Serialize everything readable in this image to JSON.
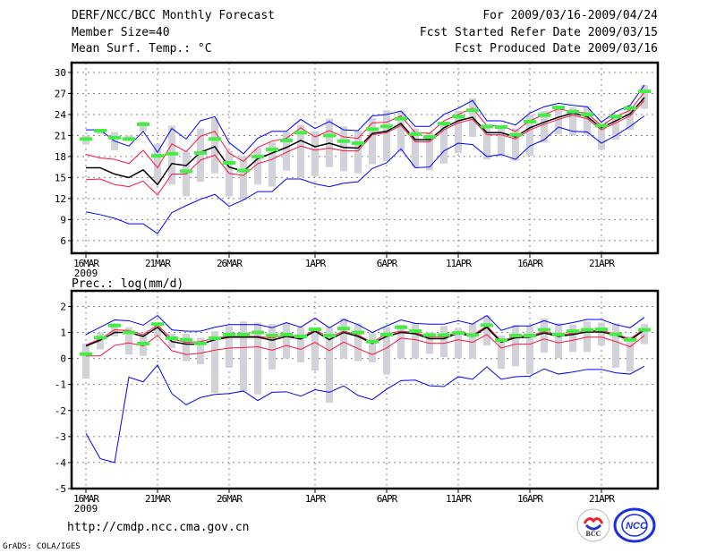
{
  "header": {
    "title": "DERF/NCC/BCC Monthly Forecast",
    "member_size": "Member Size=40",
    "variable": "Mean Surf. Temp.: °C",
    "period": "For 2009/03/16-2009/04/24",
    "start_date": "Fcst Started Refer Date 2009/03/15",
    "produced_date": "Fcst Produced Date 2009/03/16"
  },
  "footer": {
    "url": "http://cmdp.ncc.cma.gov.cn",
    "credit": "GrADS: COLA/IGES",
    "logo_left": "BCC",
    "logo_right": "NCC"
  },
  "colors": {
    "ens_bound": "#0000ff",
    "spread": "#ff1040",
    "mean": "#000000",
    "obs": "#44ee44",
    "range_bar": "#d2d3d8",
    "grid": "#888888"
  },
  "chart_data": [
    {
      "type": "line",
      "title": "Mean Surf. Temp.: °C",
      "ylabel": "°C",
      "ylim": [
        4.2,
        31.4
      ],
      "yticks": [
        6,
        9,
        12,
        15,
        18,
        21,
        24,
        27,
        30
      ],
      "xtick_labels": [
        "16MAR",
        "21MAR",
        "26MAR",
        "1APR",
        "6APR",
        "11APR",
        "16APR",
        "21APR"
      ],
      "xtick_days": [
        0,
        5,
        10,
        16,
        21,
        26,
        31,
        36
      ],
      "year_label": "2009",
      "grid": true,
      "x_days": 40,
      "series": [
        {
          "name": "max",
          "color": "#0000ff",
          "values": [
            21.8,
            21.8,
            20.2,
            19.5,
            21.6,
            18.6,
            22.0,
            20.5,
            23.1,
            23.7,
            20.0,
            18.4,
            20.6,
            21.6,
            21.6,
            23.3,
            22.0,
            23.0,
            21.8,
            21.7,
            23.8,
            24.0,
            24.5,
            22.3,
            22.3,
            24.0,
            24.9,
            26.0,
            23.1,
            23.1,
            22.5,
            24.2,
            25.1,
            25.6,
            25.3,
            25.1,
            22.9,
            24.4,
            25.3,
            28.2
          ]
        },
        {
          "name": "mean+sd",
          "color": "#ff1040",
          "values": [
            18.3,
            17.8,
            17.6,
            17.0,
            18.9,
            16.4,
            19.8,
            18.7,
            20.9,
            21.6,
            18.5,
            17.3,
            19.3,
            20.2,
            20.6,
            22.1,
            20.8,
            21.7,
            20.8,
            20.6,
            22.8,
            22.9,
            23.8,
            21.4,
            21.3,
            23.1,
            24.0,
            24.9,
            22.4,
            22.4,
            21.6,
            23.1,
            24.0,
            24.8,
            24.4,
            24.2,
            22.4,
            23.7,
            24.6,
            27.2
          ]
        },
        {
          "name": "mean",
          "color": "#000000",
          "values": [
            16.4,
            16.4,
            15.5,
            15.0,
            16.1,
            14.0,
            17.0,
            16.7,
            18.6,
            19.4,
            16.5,
            15.9,
            17.7,
            18.5,
            19.3,
            20.3,
            19.4,
            19.9,
            19.3,
            19.2,
            21.3,
            21.6,
            22.7,
            20.4,
            20.4,
            22.1,
            23.1,
            23.6,
            21.4,
            21.4,
            20.8,
            22.1,
            22.9,
            23.6,
            24.2,
            23.7,
            22.1,
            23.1,
            24.1,
            26.4
          ]
        },
        {
          "name": "mean-sd",
          "color": "#ff1040",
          "values": [
            14.7,
            14.8,
            14.0,
            13.7,
            14.5,
            12.5,
            15.5,
            15.5,
            17.5,
            18.2,
            15.6,
            15.3,
            17.0,
            17.6,
            18.6,
            19.5,
            18.9,
            19.2,
            18.8,
            18.8,
            21.1,
            21.4,
            22.4,
            20.1,
            20.1,
            21.8,
            22.8,
            23.3,
            21.1,
            21.1,
            20.5,
            21.8,
            22.6,
            23.3,
            23.9,
            23.4,
            21.8,
            22.8,
            23.8,
            26.0
          ]
        },
        {
          "name": "min",
          "color": "#0000ff",
          "values": [
            10.1,
            9.7,
            9.2,
            8.4,
            8.4,
            7.0,
            10.0,
            11.0,
            11.9,
            12.6,
            10.9,
            11.8,
            13.0,
            13.0,
            14.8,
            14.8,
            14.1,
            13.7,
            14.2,
            14.4,
            16.3,
            17.1,
            19.1,
            16.4,
            16.5,
            18.8,
            19.9,
            19.7,
            18.0,
            18.3,
            17.6,
            19.5,
            20.4,
            22.2,
            21.6,
            21.5,
            19.9,
            21.0,
            22.3,
            23.8
          ]
        }
      ],
      "observed": [
        20.5,
        21.7,
        20.7,
        20.5,
        22.6,
        18.1,
        18.4,
        15.9,
        18.5,
        20.5,
        17.1,
        16.0,
        18.0,
        19.0,
        20.3,
        21.4,
        null,
        21.0,
        20.2,
        19.9,
        21.9,
        22.3,
        23.4,
        21.2,
        20.8,
        22.7,
        23.7,
        24.6,
        22.3,
        22.2,
        21.1,
        23.0,
        23.9,
        25.0,
        24.4,
        24.0,
        22.4,
        23.7,
        24.9,
        27.3
      ],
      "range_bars": [
        [
          19.7,
          21.0
        ],
        [
          21.2,
          21.8
        ],
        [
          18.9,
          21.5
        ],
        [
          20.2,
          21.0
        ],
        [
          21.6,
          23.0
        ],
        [
          14.5,
          19.8
        ],
        [
          14.0,
          22.4
        ],
        [
          12.3,
          18.7
        ],
        [
          14.4,
          22.0
        ],
        [
          15.6,
          23.5
        ],
        [
          12.3,
          18.8
        ],
        [
          11.8,
          18.0
        ],
        [
          14.0,
          19.2
        ],
        [
          13.7,
          20.0
        ],
        [
          16.0,
          21.5
        ],
        [
          15.0,
          22.5
        ],
        [
          15.2,
          21.6
        ],
        [
          16.5,
          23.4
        ],
        [
          15.9,
          22.3
        ],
        [
          15.6,
          21.7
        ],
        [
          16.9,
          23.5
        ],
        [
          17.3,
          24.6
        ],
        [
          18.7,
          24.5
        ],
        [
          16.5,
          22.0
        ],
        [
          16.0,
          21.5
        ],
        [
          17.0,
          23.0
        ],
        [
          18.5,
          24.5
        ],
        [
          20.8,
          26.3
        ],
        [
          17.6,
          22.3
        ],
        [
          18.0,
          22.0
        ],
        [
          17.4,
          22.0
        ],
        [
          18.1,
          24.0
        ],
        [
          20.0,
          24.5
        ],
        [
          21.2,
          25.2
        ],
        [
          21.0,
          25.0
        ],
        [
          21.1,
          25.2
        ],
        [
          19.0,
          22.5
        ],
        [
          20.4,
          24.0
        ],
        [
          21.8,
          25.3
        ],
        [
          24.8,
          28.2
        ]
      ]
    },
    {
      "type": "line",
      "title": "Prec.: log(mm/d)",
      "ylabel": "log(mm/d)",
      "ylim": [
        -5,
        2.6
      ],
      "yticks": [
        -5,
        -4,
        -3,
        -2,
        -1,
        0,
        1,
        2
      ],
      "xtick_labels": [
        "16MAR",
        "21MAR",
        "26MAR",
        "1APR",
        "6APR",
        "11APR",
        "16APR",
        "21APR"
      ],
      "xtick_days": [
        0,
        5,
        10,
        16,
        21,
        26,
        31,
        36
      ],
      "year_label": "2009",
      "grid": true,
      "x_days": 40,
      "series": [
        {
          "name": "max",
          "color": "#0000ff",
          "values": [
            0.92,
            1.2,
            1.48,
            1.45,
            1.28,
            1.65,
            1.1,
            1.05,
            1.05,
            1.2,
            1.3,
            1.3,
            1.3,
            1.18,
            1.38,
            1.2,
            1.55,
            1.18,
            1.5,
            1.3,
            1.0,
            1.25,
            1.48,
            1.35,
            1.32,
            1.32,
            1.45,
            1.32,
            1.65,
            1.08,
            1.25,
            1.25,
            1.45,
            1.28,
            1.38,
            1.5,
            1.5,
            1.3,
            1.18,
            1.58
          ]
        },
        {
          "name": "mean+sd",
          "color": "#ff1040",
          "values": [
            0.52,
            0.75,
            1.1,
            1.08,
            0.92,
            1.28,
            0.75,
            0.62,
            0.65,
            0.78,
            0.85,
            0.85,
            0.85,
            0.78,
            0.9,
            0.8,
            1.1,
            0.82,
            1.05,
            0.9,
            0.62,
            0.95,
            1.05,
            1.0,
            0.82,
            0.82,
            1.03,
            0.9,
            1.25,
            0.67,
            0.85,
            0.87,
            1.03,
            0.9,
            0.97,
            1.07,
            1.07,
            0.95,
            0.75,
            1.15
          ]
        },
        {
          "name": "mean",
          "color": "#000000",
          "values": [
            0.48,
            0.7,
            1.0,
            1.0,
            0.85,
            1.2,
            0.65,
            0.55,
            0.55,
            0.72,
            0.82,
            0.82,
            0.82,
            0.7,
            0.85,
            0.75,
            1.05,
            0.72,
            1.0,
            0.85,
            0.58,
            0.85,
            1.0,
            0.95,
            0.76,
            0.76,
            0.98,
            0.85,
            1.2,
            0.62,
            0.8,
            0.82,
            0.98,
            0.85,
            0.92,
            1.02,
            1.02,
            0.9,
            0.7,
            1.1
          ]
        },
        {
          "name": "mean-sd",
          "color": "#ff1040",
          "values": [
            0.1,
            0.1,
            0.5,
            0.6,
            0.48,
            0.88,
            0.3,
            0.15,
            0.2,
            0.32,
            0.4,
            0.42,
            0.45,
            0.32,
            0.5,
            0.35,
            0.62,
            0.3,
            0.63,
            0.38,
            0.15,
            0.4,
            0.78,
            0.72,
            0.58,
            0.58,
            0.72,
            0.62,
            0.92,
            0.4,
            0.55,
            0.55,
            0.75,
            0.6,
            0.7,
            0.82,
            0.82,
            0.65,
            0.45,
            0.88
          ]
        },
        {
          "name": "min",
          "color": "#0000ff",
          "values": [
            -2.88,
            -3.85,
            -4.0,
            -0.72,
            -0.9,
            -0.25,
            -1.35,
            -1.78,
            -1.5,
            -1.38,
            -1.35,
            -1.25,
            -1.62,
            -1.3,
            -1.28,
            -1.45,
            -1.2,
            -1.3,
            -1.05,
            -1.42,
            -1.58,
            -1.18,
            -0.85,
            -0.83,
            -1.05,
            -1.08,
            -0.7,
            -0.8,
            -0.32,
            -0.8,
            -0.7,
            -0.68,
            -0.4,
            -0.6,
            -0.52,
            -0.42,
            -0.42,
            -0.55,
            -0.6,
            -0.3
          ]
        }
      ],
      "observed": [
        0.17,
        0.8,
        1.27,
        1.0,
        0.57,
        1.32,
        0.78,
        0.72,
        0.58,
        0.78,
        0.92,
        0.92,
        1.0,
        0.88,
        0.92,
        0.85,
        1.12,
        0.88,
        1.15,
        1.0,
        0.65,
        0.92,
        1.2,
        1.05,
        0.9,
        0.9,
        0.98,
        0.9,
        1.28,
        0.7,
        0.88,
        0.88,
        1.1,
        0.92,
        1.05,
        1.1,
        1.12,
        0.93,
        0.72,
        1.1
      ],
      "range_bars": [
        [
          -0.78,
          0.57
        ],
        [
          0.35,
          1.0
        ],
        [
          0.85,
          1.35
        ],
        [
          0.15,
          1.2
        ],
        [
          0.1,
          0.9
        ],
        [
          0.85,
          1.35
        ],
        [
          0.4,
          0.95
        ],
        [
          -0.1,
          0.95
        ],
        [
          -0.22,
          0.8
        ],
        [
          -1.32,
          1.05
        ],
        [
          -0.35,
          1.25
        ],
        [
          -1.25,
          1.42
        ],
        [
          -1.38,
          1.38
        ],
        [
          -0.42,
          1.32
        ],
        [
          0.0,
          1.35
        ],
        [
          -0.15,
          1.2
        ],
        [
          -0.47,
          1.15
        ],
        [
          -1.7,
          1.2
        ],
        [
          0.0,
          1.55
        ],
        [
          -0.1,
          1.35
        ],
        [
          -0.15,
          0.98
        ],
        [
          -0.62,
          1.2
        ],
        [
          0.0,
          1.3
        ],
        [
          0.0,
          1.35
        ],
        [
          0.18,
          1.0
        ],
        [
          0.05,
          1.25
        ],
        [
          0.0,
          1.18
        ],
        [
          0.0,
          1.35
        ],
        [
          0.5,
          1.65
        ],
        [
          -0.4,
          0.88
        ],
        [
          -0.3,
          1.28
        ],
        [
          -0.6,
          1.25
        ],
        [
          0.22,
          1.55
        ],
        [
          0.02,
          1.35
        ],
        [
          0.25,
          1.3
        ],
        [
          0.25,
          1.42
        ],
        [
          0.5,
          1.38
        ],
        [
          -0.35,
          1.35
        ],
        [
          -0.5,
          0.85
        ],
        [
          0.55,
          1.32
        ]
      ]
    }
  ]
}
